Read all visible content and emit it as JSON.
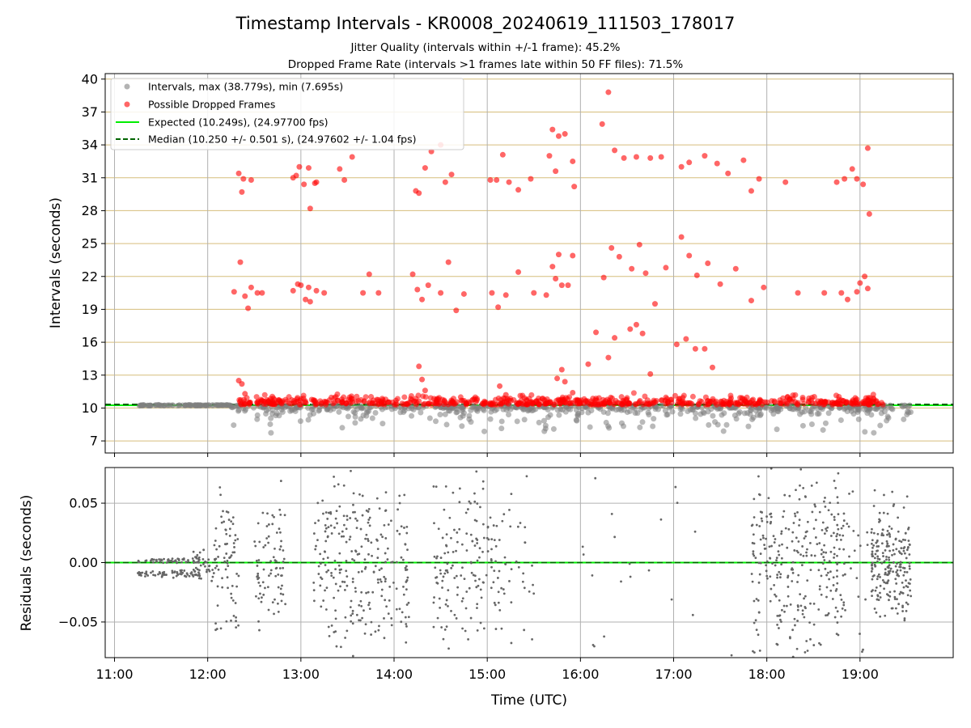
{
  "title": "Timestamp Intervals - KR0008_20240619_111503_178017",
  "subtitle_1": "Jitter Quality (intervals within +/-1 frame): 45.2%",
  "subtitle_2": "Dropped Frame Rate (intervals >1 frames late within 50 FF files): 71.5%",
  "chart_data": [
    {
      "type": "scatter",
      "xlabel": "",
      "ylabel": "Intervals (seconds)",
      "xlim": [
        "10:54",
        "20:00"
      ],
      "ylim": [
        5.9,
        40.5
      ],
      "yticks": [
        7,
        10,
        13,
        16,
        19,
        22,
        25,
        28,
        31,
        34,
        37,
        40
      ],
      "grid": true,
      "legend": {
        "placement": "top-left",
        "entries": [
          {
            "label": "Intervals, max (38.779s), min (7.695s)",
            "marker": "circle",
            "color": "#808080"
          },
          {
            "label": "Possible Dropped Frames",
            "marker": "circle",
            "color": "#ff0000"
          },
          {
            "label": "Expected (10.249s), (24.97700 fps)",
            "marker": "line",
            "color": "#00ee00"
          },
          {
            "label": "Median (10.250 +/- 0.501 s), (24.97602 +/- 1.04 fps)",
            "marker": "dashed-line",
            "color": "#006400"
          }
        ]
      },
      "reference_lines": [
        {
          "name": "Expected",
          "y": 10.249,
          "color": "#00ee00"
        },
        {
          "name": "Median",
          "y": 10.25,
          "color": "#006400"
        }
      ],
      "series": [
        {
          "name": "Intervals, max (38.779s), min (7.695s)",
          "color": "#808080",
          "points_estimated": true,
          "dense_band_y": 10.25,
          "max": 38.779,
          "min": 7.695
        },
        {
          "name": "Possible Dropped Frames",
          "color": "#ff0000",
          "points": [
            {
              "x": "12:20",
              "y": 31.4
            },
            {
              "x": "12:22",
              "y": 29.7
            },
            {
              "x": "12:23",
              "y": 30.9
            },
            {
              "x": "12:28",
              "y": 30.8
            },
            {
              "x": "12:17",
              "y": 20.6
            },
            {
              "x": "12:21",
              "y": 23.3
            },
            {
              "x": "12:24",
              "y": 20.2
            },
            {
              "x": "12:26",
              "y": 19.1
            },
            {
              "x": "12:28",
              "y": 21.0
            },
            {
              "x": "12:32",
              "y": 20.5
            },
            {
              "x": "12:35",
              "y": 20.5
            },
            {
              "x": "12:20",
              "y": 12.5
            },
            {
              "x": "12:22",
              "y": 12.2
            },
            {
              "x": "12:24",
              "y": 11.3
            },
            {
              "x": "12:55",
              "y": 31.0
            },
            {
              "x": "12:57",
              "y": 31.2
            },
            {
              "x": "12:59",
              "y": 32.0
            },
            {
              "x": "13:02",
              "y": 30.4
            },
            {
              "x": "13:05",
              "y": 31.9
            },
            {
              "x": "13:06",
              "y": 28.2
            },
            {
              "x": "13:09",
              "y": 30.5
            },
            {
              "x": "13:10",
              "y": 30.6
            },
            {
              "x": "12:55",
              "y": 20.7
            },
            {
              "x": "12:58",
              "y": 21.3
            },
            {
              "x": "13:00",
              "y": 21.2
            },
            {
              "x": "13:03",
              "y": 19.9
            },
            {
              "x": "13:05",
              "y": 21.0
            },
            {
              "x": "13:06",
              "y": 19.7
            },
            {
              "x": "13:10",
              "y": 20.7
            },
            {
              "x": "13:15",
              "y": 20.5
            },
            {
              "x": "13:25",
              "y": 31.8
            },
            {
              "x": "13:28",
              "y": 30.8
            },
            {
              "x": "13:33",
              "y": 32.9
            },
            {
              "x": "13:40",
              "y": 20.5
            },
            {
              "x": "13:44",
              "y": 22.2
            },
            {
              "x": "13:50",
              "y": 20.5
            },
            {
              "x": "14:12",
              "y": 22.2
            },
            {
              "x": "14:15",
              "y": 20.8
            },
            {
              "x": "14:18",
              "y": 19.9
            },
            {
              "x": "14:14",
              "y": 29.8
            },
            {
              "x": "14:16",
              "y": 29.6
            },
            {
              "x": "14:20",
              "y": 31.9
            },
            {
              "x": "14:24",
              "y": 33.4
            },
            {
              "x": "14:30",
              "y": 34.0
            },
            {
              "x": "14:33",
              "y": 30.6
            },
            {
              "x": "14:37",
              "y": 31.3
            },
            {
              "x": "14:22",
              "y": 21.2
            },
            {
              "x": "14:30",
              "y": 20.5
            },
            {
              "x": "14:35",
              "y": 23.3
            },
            {
              "x": "14:40",
              "y": 18.9
            },
            {
              "x": "14:45",
              "y": 20.4
            },
            {
              "x": "14:16",
              "y": 13.8
            },
            {
              "x": "14:18",
              "y": 12.6
            },
            {
              "x": "14:20",
              "y": 11.6
            },
            {
              "x": "15:02",
              "y": 30.8
            },
            {
              "x": "15:06",
              "y": 30.8
            },
            {
              "x": "15:10",
              "y": 33.1
            },
            {
              "x": "15:14",
              "y": 30.6
            },
            {
              "x": "15:20",
              "y": 29.9
            },
            {
              "x": "15:28",
              "y": 30.9
            },
            {
              "x": "15:03",
              "y": 20.5
            },
            {
              "x": "15:07",
              "y": 19.2
            },
            {
              "x": "15:12",
              "y": 20.3
            },
            {
              "x": "15:20",
              "y": 22.4
            },
            {
              "x": "15:30",
              "y": 20.5
            },
            {
              "x": "15:08",
              "y": 12.0
            },
            {
              "x": "15:12",
              "y": 11.2
            },
            {
              "x": "15:40",
              "y": 33.0
            },
            {
              "x": "15:42",
              "y": 35.4
            },
            {
              "x": "15:44",
              "y": 31.6
            },
            {
              "x": "15:46",
              "y": 34.8
            },
            {
              "x": "15:50",
              "y": 35.0
            },
            {
              "x": "15:55",
              "y": 32.5
            },
            {
              "x": "15:56",
              "y": 30.2
            },
            {
              "x": "15:38",
              "y": 20.3
            },
            {
              "x": "15:42",
              "y": 22.9
            },
            {
              "x": "15:44",
              "y": 21.8
            },
            {
              "x": "15:46",
              "y": 24.0
            },
            {
              "x": "15:48",
              "y": 21.2
            },
            {
              "x": "15:52",
              "y": 21.2
            },
            {
              "x": "15:55",
              "y": 23.9
            },
            {
              "x": "15:45",
              "y": 12.7
            },
            {
              "x": "15:48",
              "y": 13.5
            },
            {
              "x": "15:50",
              "y": 12.4
            },
            {
              "x": "15:55",
              "y": 11.4
            },
            {
              "x": "16:14",
              "y": 35.9
            },
            {
              "x": "16:18",
              "y": 38.8
            },
            {
              "x": "16:22",
              "y": 33.5
            },
            {
              "x": "16:28",
              "y": 32.8
            },
            {
              "x": "16:36",
              "y": 32.9
            },
            {
              "x": "16:45",
              "y": 32.8
            },
            {
              "x": "16:52",
              "y": 32.9
            },
            {
              "x": "16:15",
              "y": 21.9
            },
            {
              "x": "16:20",
              "y": 24.6
            },
            {
              "x": "16:25",
              "y": 23.8
            },
            {
              "x": "16:33",
              "y": 22.7
            },
            {
              "x": "16:38",
              "y": 24.9
            },
            {
              "x": "16:42",
              "y": 22.3
            },
            {
              "x": "16:48",
              "y": 19.5
            },
            {
              "x": "16:55",
              "y": 22.8
            },
            {
              "x": "16:05",
              "y": 14.0
            },
            {
              "x": "16:10",
              "y": 16.9
            },
            {
              "x": "16:18",
              "y": 14.6
            },
            {
              "x": "16:22",
              "y": 16.4
            },
            {
              "x": "16:32",
              "y": 17.2
            },
            {
              "x": "16:36",
              "y": 17.6
            },
            {
              "x": "16:40",
              "y": 16.8
            },
            {
              "x": "16:45",
              "y": 13.1
            },
            {
              "x": "17:05",
              "y": 32.0
            },
            {
              "x": "17:10",
              "y": 32.4
            },
            {
              "x": "17:20",
              "y": 33.0
            },
            {
              "x": "17:28",
              "y": 32.3
            },
            {
              "x": "17:35",
              "y": 31.4
            },
            {
              "x": "17:45",
              "y": 32.6
            },
            {
              "x": "17:50",
              "y": 29.8
            },
            {
              "x": "17:55",
              "y": 30.9
            },
            {
              "x": "17:05",
              "y": 25.6
            },
            {
              "x": "17:10",
              "y": 23.9
            },
            {
              "x": "17:15",
              "y": 22.1
            },
            {
              "x": "17:22",
              "y": 23.2
            },
            {
              "x": "17:30",
              "y": 21.3
            },
            {
              "x": "17:40",
              "y": 22.7
            },
            {
              "x": "17:50",
              "y": 19.8
            },
            {
              "x": "17:58",
              "y": 21.0
            },
            {
              "x": "17:02",
              "y": 15.8
            },
            {
              "x": "17:08",
              "y": 16.3
            },
            {
              "x": "17:14",
              "y": 15.4
            },
            {
              "x": "17:20",
              "y": 15.4
            },
            {
              "x": "17:25",
              "y": 13.7
            },
            {
              "x": "18:12",
              "y": 30.6
            },
            {
              "x": "18:20",
              "y": 20.5
            },
            {
              "x": "18:37",
              "y": 20.5
            },
            {
              "x": "18:48",
              "y": 20.5
            },
            {
              "x": "18:52",
              "y": 19.9
            },
            {
              "x": "18:45",
              "y": 30.6
            },
            {
              "x": "18:50",
              "y": 30.9
            },
            {
              "x": "18:55",
              "y": 31.8
            },
            {
              "x": "18:58",
              "y": 30.9
            },
            {
              "x": "19:02",
              "y": 30.4
            },
            {
              "x": "19:05",
              "y": 33.7
            },
            {
              "x": "19:06",
              "y": 27.7
            },
            {
              "x": "18:58",
              "y": 20.6
            },
            {
              "x": "19:00",
              "y": 21.4
            },
            {
              "x": "19:03",
              "y": 22.0
            },
            {
              "x": "19:05",
              "y": 20.9
            }
          ]
        }
      ]
    },
    {
      "type": "scatter",
      "xlabel": "Time (UTC)",
      "ylabel": "Residuals (seconds)",
      "xlim": [
        "10:54",
        "20:00"
      ],
      "ylim": [
        -0.08,
        0.08
      ],
      "xticks": [
        "11:00",
        "12:00",
        "13:00",
        "14:00",
        "15:00",
        "16:00",
        "17:00",
        "18:00",
        "19:00"
      ],
      "yticks": [
        0.05,
        0.0,
        -0.05
      ],
      "ytick_labels": [
        "0.05",
        "0.00",
        "−0.05"
      ],
      "grid": true,
      "reference_lines": [
        {
          "y": 0.0,
          "color": "#00ee00"
        }
      ],
      "series": [
        {
          "name": "",
          "color": "#666666",
          "points_estimated": true
        }
      ]
    }
  ]
}
